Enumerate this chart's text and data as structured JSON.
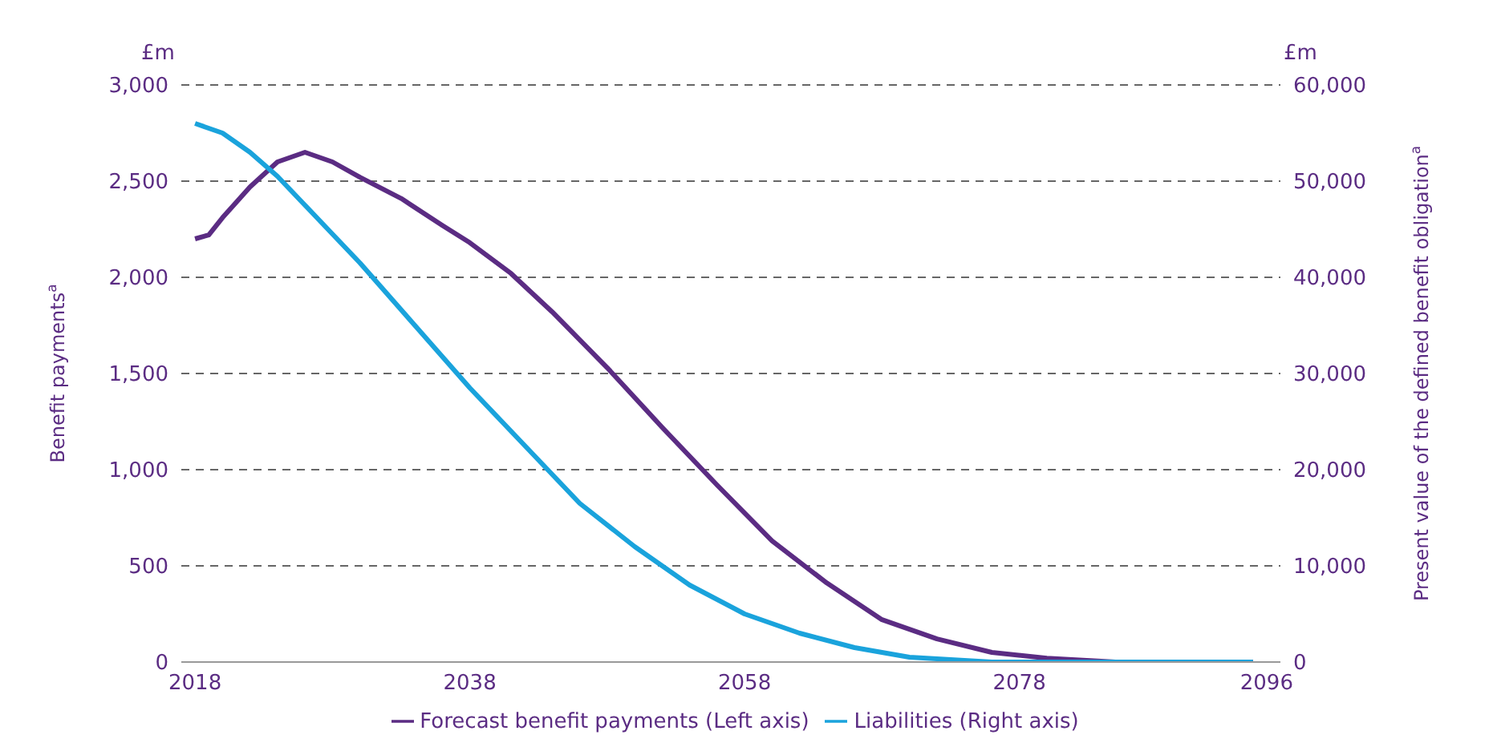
{
  "chart_data": {
    "type": "line",
    "xlim": [
      2017,
      2097
    ],
    "xticks": [
      2018,
      2038,
      2058,
      2078,
      2096
    ],
    "ylim": [
      0,
      3000
    ],
    "yticks": [
      0,
      500,
      {
        "value": 1000,
        "label": "1,000"
      },
      {
        "value": 1500,
        "label": "1,500"
      },
      {
        "value": 2000,
        "label": "2,000"
      },
      {
        "value": 2500,
        "label": "2,500"
      },
      {
        "value": 3000,
        "label": "3,000"
      }
    ],
    "y2lim": [
      0,
      60000
    ],
    "y2ticks": [
      0,
      {
        "value": 10000,
        "label": "10,000"
      },
      {
        "value": 20000,
        "label": "20,000"
      },
      {
        "value": 30000,
        "label": "30,000"
      },
      {
        "value": 40000,
        "label": "40,000"
      },
      {
        "value": 50000,
        "label": "50,000"
      },
      {
        "value": 60000,
        "label": "60,000"
      }
    ],
    "ylabel": "Benefit payments$^{a}$",
    "y2label": "Present value of the defined benefit obligation$^{a}$",
    "annotations": [
      "£m",
      "£m"
    ],
    "grid": "y",
    "legend": "bottom",
    "marker": "none",
    "line_style": "solid",
    "series": [
      {
        "name": "Forecast benefit payments (Left axis)",
        "color": "#5b2c83",
        "axis": "y",
        "x": [
          2018,
          2019,
          2020,
          2022,
          2024,
          2026,
          2028,
          2030,
          2033,
          2036,
          2038,
          2041,
          2044,
          2048,
          2052,
          2056,
          2060,
          2064,
          2068,
          2072,
          2076,
          2080,
          2085,
          2090,
          2095
        ],
        "values": [
          2200,
          2220,
          2310,
          2470,
          2600,
          2650,
          2600,
          2520,
          2410,
          2270,
          2180,
          2020,
          1820,
          1530,
          1220,
          920,
          630,
          410,
          220,
          120,
          50,
          20,
          0,
          0,
          0
        ]
      },
      {
        "name": "Liabilities (Right axis)",
        "color": "#1aa3dc",
        "axis": "y2",
        "x": [
          2018,
          2020,
          2022,
          2024,
          2026,
          2028,
          2030,
          2034,
          2038,
          2042,
          2046,
          2050,
          2054,
          2058,
          2062,
          2066,
          2070,
          2076,
          2080,
          2095
        ],
        "values": [
          56000,
          55000,
          53000,
          50500,
          47500,
          44500,
          41500,
          35000,
          28500,
          22500,
          16500,
          12000,
          8000,
          5000,
          3000,
          1500,
          500,
          0,
          0,
          0
        ]
      }
    ]
  }
}
